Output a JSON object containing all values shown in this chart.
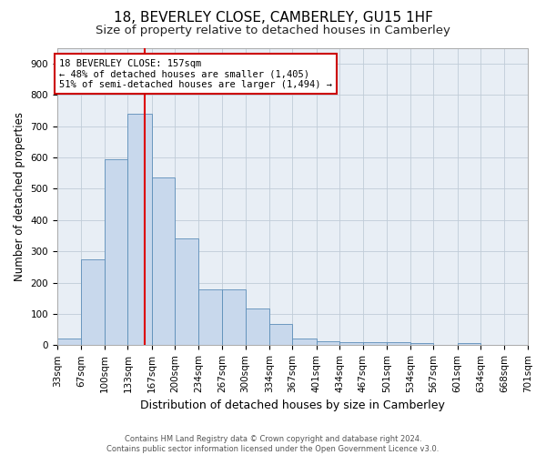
{
  "title": "18, BEVERLEY CLOSE, CAMBERLEY, GU15 1HF",
  "subtitle": "Size of property relative to detached houses in Camberley",
  "xlabel": "Distribution of detached houses by size in Camberley",
  "ylabel": "Number of detached properties",
  "footer_line1": "Contains HM Land Registry data © Crown copyright and database right 2024.",
  "footer_line2": "Contains public sector information licensed under the Open Government Licence v3.0.",
  "bin_edges": [
    33,
    67,
    100,
    133,
    167,
    200,
    234,
    267,
    300,
    334,
    367,
    401,
    434,
    467,
    501,
    534,
    567,
    601,
    634,
    668,
    701
  ],
  "bar_heights": [
    22,
    275,
    594,
    738,
    535,
    340,
    178,
    178,
    118,
    68,
    22,
    13,
    11,
    9,
    9,
    8,
    0,
    8,
    0,
    0
  ],
  "bar_color": "#c8d8ec",
  "bar_edge_color": "#5b8db8",
  "property_size": 157,
  "property_line_color": "#dd0000",
  "annotation_line1": "18 BEVERLEY CLOSE: 157sqm",
  "annotation_line2": "← 48% of detached houses are smaller (1,405)",
  "annotation_line3": "51% of semi-detached houses are larger (1,494) →",
  "annotation_box_color": "#cc0000",
  "ylim": [
    0,
    950
  ],
  "yticks": [
    0,
    100,
    200,
    300,
    400,
    500,
    600,
    700,
    800,
    900
  ],
  "background_color": "#ffffff",
  "plot_background_color": "#e8eef5",
  "grid_color": "#c0ccd8",
  "title_fontsize": 11,
  "subtitle_fontsize": 9.5,
  "xlabel_fontsize": 9,
  "ylabel_fontsize": 8.5,
  "tick_fontsize": 7.5,
  "footer_fontsize": 6,
  "annotation_fontsize": 7.5
}
